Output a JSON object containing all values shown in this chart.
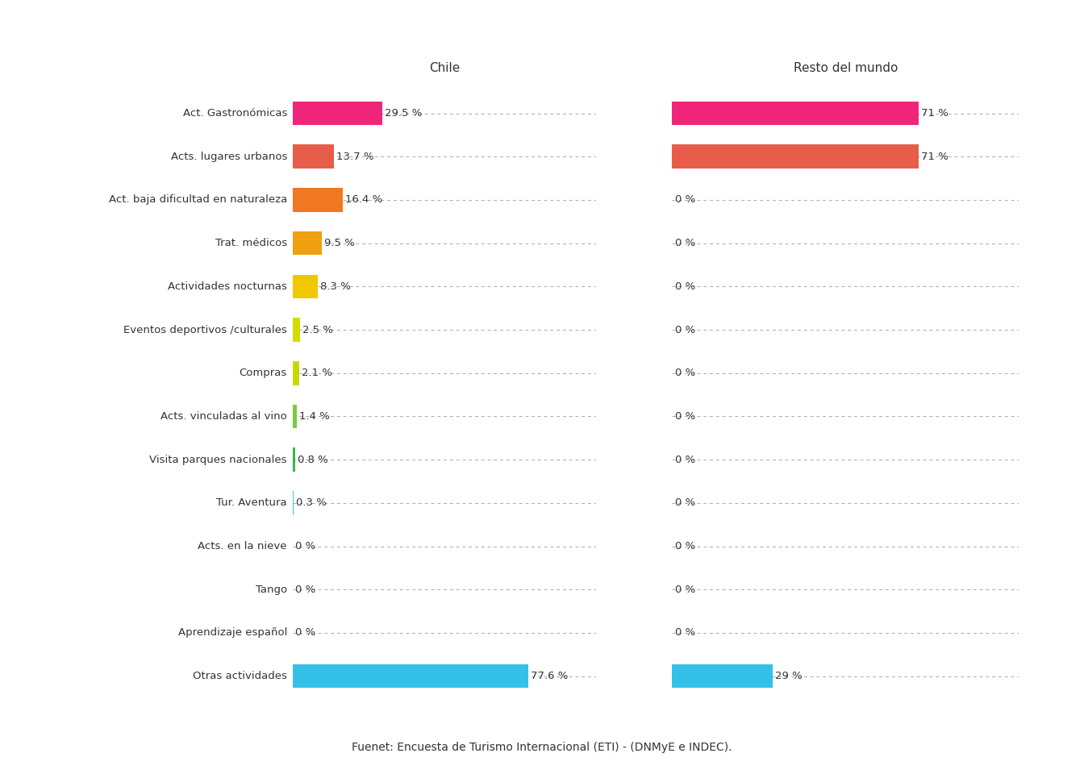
{
  "categories": [
    "Act. Gastronómicas",
    "Acts. lugares urbanos",
    "Act. baja dificultad en naturaleza",
    "Trat. médicos",
    "Actividades nocturnas",
    "Eventos deportivos /culturales",
    "Compras",
    "Acts. vinculadas al vino",
    "Visita parques nacionales",
    "Tur. Aventura",
    "Acts. en la nieve",
    "Tango",
    "Aprendizaje español",
    "Otras actividades"
  ],
  "chile_values": [
    29.5,
    13.7,
    16.4,
    9.5,
    8.3,
    2.5,
    2.1,
    1.4,
    0.8,
    0.3,
    0,
    0,
    0,
    77.6
  ],
  "chile_labels": [
    "29.5 %",
    "13.7 %",
    "16.4 %",
    "9.5 %",
    "8.3 %",
    "2.5 %",
    "2.1 %",
    "1.4 %",
    "0.8 %",
    "0.3 %",
    "0 %",
    "0 %",
    "0 %",
    "77.6 %"
  ],
  "mundo_values": [
    71,
    71,
    0,
    0,
    0,
    0,
    0,
    0,
    0,
    0,
    0,
    0,
    0,
    29
  ],
  "mundo_labels": [
    "71 %",
    "71 %",
    "0 %",
    "0 %",
    "0 %",
    "0 %",
    "0 %",
    "0 %",
    "0 %",
    "0 %",
    "0 %",
    "0 %",
    "0 %",
    "29 %"
  ],
  "chile_colors": [
    "#f0257a",
    "#e85c4a",
    "#f07820",
    "#f0a010",
    "#f0c800",
    "#d4dc00",
    "#c8d800",
    "#78c840",
    "#30b850",
    "#40c8c8",
    "#40c8c8",
    "#40c8c8",
    "#40c8c8",
    "#35c0e8"
  ],
  "mundo_colors": [
    "#f0257a",
    "#e85c4a",
    "#40c8c8",
    "#40c8c8",
    "#40c8c8",
    "#40c8c8",
    "#40c8c8",
    "#40c8c8",
    "#40c8c8",
    "#40c8c8",
    "#40c8c8",
    "#40c8c8",
    "#40c8c8",
    "#35c0e8"
  ],
  "col1_title": "Chile",
  "col2_title": "Resto del mundo",
  "footnote": "Fuenet: Encuesta de Turismo Internacional (ETI) - (DNMyE e INDEC).",
  "background_color": "#ffffff",
  "text_color": "#333333",
  "grid_color": "#aaaaaa",
  "bar_height": 0.55,
  "chile_xlim": 100,
  "mundo_xlim": 100,
  "title_fontsize": 11,
  "label_fontsize": 9.5,
  "cat_fontsize": 9.5
}
